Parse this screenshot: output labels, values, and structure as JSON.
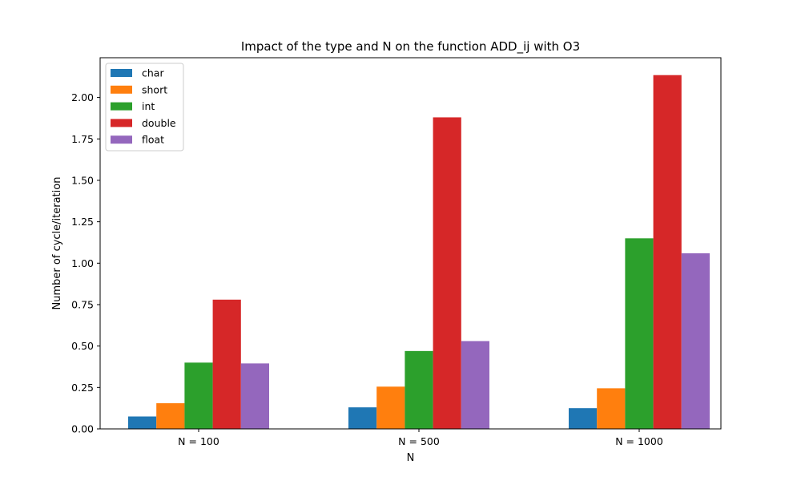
{
  "chart_data": {
    "type": "bar",
    "title": "Impact of the type and N on the function ADD_ij with O3",
    "xlabel": "N",
    "ylabel": "Number of cycle/iteration",
    "categories": [
      "N = 100",
      "N = 500",
      "N = 1000"
    ],
    "series": [
      {
        "name": "char",
        "color": "#1f77b4",
        "values": [
          0.075,
          0.13,
          0.125
        ]
      },
      {
        "name": "short",
        "color": "#ff7f0e",
        "values": [
          0.155,
          0.255,
          0.245
        ]
      },
      {
        "name": "int",
        "color": "#2ca02c",
        "values": [
          0.4,
          0.47,
          1.15
        ]
      },
      {
        "name": "double",
        "color": "#d62728",
        "values": [
          0.78,
          1.88,
          2.135
        ]
      },
      {
        "name": "float",
        "color": "#9467bd",
        "values": [
          0.395,
          0.53,
          1.06
        ]
      }
    ],
    "ylim": [
      0,
      2.24
    ],
    "yticks": [
      "0.00",
      "0.25",
      "0.50",
      "0.75",
      "1.00",
      "1.25",
      "1.50",
      "1.75",
      "2.00"
    ],
    "grid": false,
    "legend_position": "top-left"
  }
}
